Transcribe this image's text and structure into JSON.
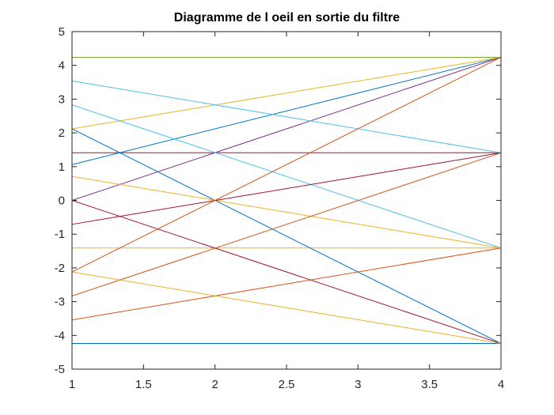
{
  "chart_data": {
    "type": "line",
    "title": "Diagramme de l oeil en sortie du filtre",
    "xlabel": "",
    "ylabel": "",
    "xlim": [
      1,
      4
    ],
    "ylim": [
      -5,
      5
    ],
    "xticks": [
      "1",
      "1.5",
      "2",
      "2.5",
      "3",
      "3.5",
      "4"
    ],
    "yticks": [
      "5",
      "4",
      "3",
      "2",
      "1",
      "0",
      "-1",
      "-2",
      "-3",
      "-4",
      "-5"
    ],
    "grid": false,
    "series": [
      {
        "color": "#0072BD",
        "x": [
          1,
          4
        ],
        "y": [
          -4.24,
          -4.24
        ]
      },
      {
        "color": "#EDB120",
        "x": [
          1,
          4
        ],
        "y": [
          -1.41,
          -1.41
        ]
      },
      {
        "color": "#A2142F",
        "x": [
          1,
          4
        ],
        "y": [
          1.41,
          1.41
        ]
      },
      {
        "color": "#77AC30",
        "x": [
          1,
          4
        ],
        "y": [
          4.24,
          4.24
        ]
      },
      {
        "color": "#0072BD",
        "x": [
          1,
          4
        ],
        "y": [
          1.06,
          4.24
        ]
      },
      {
        "color": "#0072BD",
        "x": [
          1,
          4
        ],
        "y": [
          2.12,
          -4.24
        ]
      },
      {
        "color": "#EDB120",
        "x": [
          1,
          4
        ],
        "y": [
          2.12,
          4.24
        ]
      },
      {
        "color": "#7E2F8E",
        "x": [
          1,
          4
        ],
        "y": [
          0,
          4.24
        ]
      },
      {
        "color": "#4DBEEE",
        "x": [
          1,
          4
        ],
        "y": [
          3.54,
          1.41
        ]
      },
      {
        "color": "#4DBEEE",
        "x": [
          1,
          4
        ],
        "y": [
          2.83,
          -1.41
        ]
      },
      {
        "color": "#EDB120",
        "x": [
          1,
          4
        ],
        "y": [
          0.71,
          -1.41
        ]
      },
      {
        "color": "#A2142F",
        "x": [
          1,
          4
        ],
        "y": [
          -0.71,
          1.41
        ]
      },
      {
        "color": "#A2142F",
        "x": [
          1,
          4
        ],
        "y": [
          0,
          -4.24
        ]
      },
      {
        "color": "#D95319",
        "x": [
          1,
          4
        ],
        "y": [
          -2.12,
          4.24
        ]
      },
      {
        "color": "#D95319",
        "x": [
          1,
          4
        ],
        "y": [
          -2.83,
          1.41
        ]
      },
      {
        "color": "#D95319",
        "x": [
          1,
          4
        ],
        "y": [
          -3.54,
          -1.41
        ]
      },
      {
        "color": "#EDB120",
        "x": [
          1,
          4
        ],
        "y": [
          -2.12,
          -4.24
        ]
      }
    ]
  }
}
